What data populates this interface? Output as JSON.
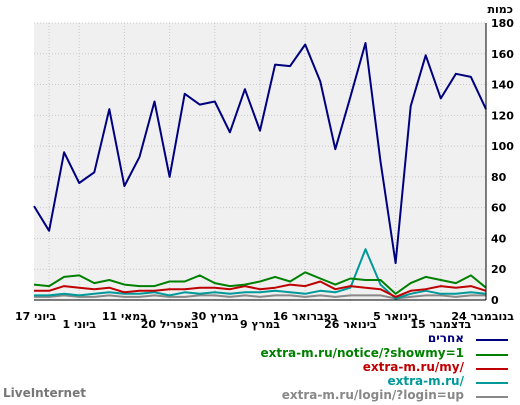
{
  "chart_data": {
    "type": "line",
    "unit_label": "כמות",
    "ylim": [
      0,
      180
    ],
    "y_ticks": [
      0,
      20,
      40,
      60,
      80,
      100,
      120,
      140,
      160,
      180
    ],
    "grid": true,
    "legend_placement": "bottom-right",
    "x_tick_labels": [
      "24 בנובמבר",
      "15 בדצמבר",
      "5 בינואר",
      "26 בינואר",
      "16 בפברואר",
      "9 במרץ",
      "30 במרץ",
      "20 באפריל",
      "11 במאי",
      "1 ביוני",
      "17 ביוני"
    ],
    "x_tick_index": [
      0,
      3,
      6,
      9,
      12,
      15,
      18,
      21,
      24,
      27,
      29
    ],
    "series": [
      {
        "name": "אחרים",
        "color": "#00007f",
        "values": [
          124,
          145,
          147,
          131,
          159,
          126,
          24,
          90,
          167,
          132,
          98,
          142,
          166,
          152,
          153,
          110,
          137,
          109,
          129,
          127,
          134,
          80,
          129,
          93,
          74,
          124,
          83,
          76,
          96,
          45,
          61
        ]
      },
      {
        "name": "extra-m.ru/notice/?showmy=1",
        "color": "#008000",
        "values": [
          8,
          16,
          11,
          13,
          15,
          11,
          4,
          13,
          13,
          14,
          10,
          14,
          18,
          12,
          15,
          12,
          10,
          9,
          11,
          16,
          12,
          12,
          9,
          9,
          10,
          13,
          11,
          16,
          15,
          9,
          10
        ]
      },
      {
        "name": "extra-m.ru/my/",
        "color": "#c00000",
        "values": [
          6,
          9,
          8,
          9,
          7,
          6,
          2,
          7,
          8,
          9,
          7,
          12,
          9,
          10,
          8,
          7,
          9,
          7,
          8,
          8,
          7,
          7,
          6,
          6,
          5,
          8,
          7,
          8,
          9,
          6,
          6
        ]
      },
      {
        "name": "extra-m.ru/",
        "color": "#009999",
        "values": [
          4,
          5,
          4,
          4,
          6,
          4,
          1,
          10,
          33,
          8,
          5,
          6,
          4,
          5,
          6,
          5,
          5,
          4,
          5,
          4,
          5,
          3,
          5,
          4,
          4,
          5,
          4,
          3,
          4,
          3,
          3
        ]
      },
      {
        "name": "extra-m.ru/login/?login=up",
        "color": "#888888",
        "values": [
          3,
          3,
          2,
          3,
          3,
          2,
          1,
          3,
          3,
          3,
          2,
          3,
          2,
          3,
          3,
          2,
          3,
          2,
          3,
          3,
          2,
          2,
          3,
          2,
          2,
          3,
          2,
          2,
          3,
          2,
          2
        ]
      }
    ]
  },
  "brand": "LiveInternet"
}
